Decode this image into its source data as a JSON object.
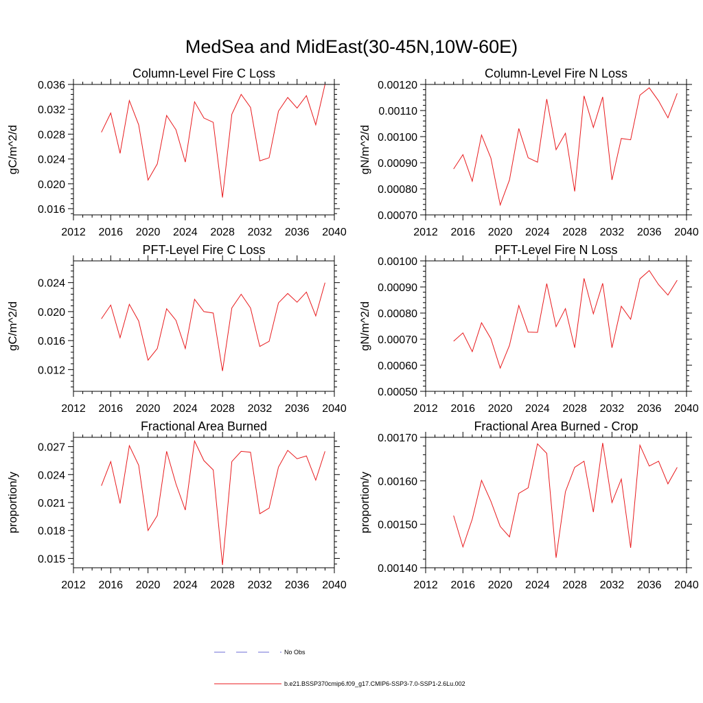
{
  "figure": {
    "title": "MedSea and MidEast(30-45N,10W-60E)"
  },
  "legend": {
    "entries": [
      {
        "label": "No Obs",
        "style": "dashed",
        "color": "#6b6bd6"
      },
      {
        "label": "b.e21.BSSP370cmip6.f09_g17.CMIP6-SSP3-7.0-SSP1-2.6Lu.002",
        "style": "solid",
        "color": "#e8191c"
      }
    ]
  },
  "chart_data": [
    {
      "type": "line",
      "title": "Column-Level Fire C Loss",
      "ylabel": "gC/m^2/d",
      "xlim": [
        2012,
        2040
      ],
      "xticks": [
        "2012",
        "2016",
        "2020",
        "2024",
        "2028",
        "2032",
        "2036",
        "2040"
      ],
      "ylim": [
        0.015,
        0.036
      ],
      "yticks": [
        "0.016",
        "0.020",
        "0.024",
        "0.028",
        "0.032",
        "0.036"
      ],
      "series": [
        {
          "color": "#e8191c",
          "x": [
            2015,
            2016,
            2017,
            2018,
            2019,
            2020,
            2021,
            2022,
            2023,
            2024,
            2025,
            2026,
            2027,
            2028,
            2029,
            2030,
            2031,
            2032,
            2033,
            2034,
            2035,
            2036,
            2037,
            2038,
            2039
          ],
          "y": [
            0.0283,
            0.0314,
            0.0249,
            0.0334,
            0.0295,
            0.0206,
            0.0232,
            0.031,
            0.0287,
            0.0235,
            0.0332,
            0.0306,
            0.0299,
            0.0178,
            0.0312,
            0.0344,
            0.0323,
            0.0237,
            0.0242,
            0.0317,
            0.0339,
            0.0322,
            0.0342,
            0.0295,
            0.036
          ]
        }
      ]
    },
    {
      "type": "line",
      "title": "Column-Level Fire N Loss",
      "ylabel": "gN/m^2/d",
      "xlim": [
        2012,
        2040
      ],
      "xticks": [
        "2012",
        "2016",
        "2020",
        "2024",
        "2028",
        "2032",
        "2036",
        "2040"
      ],
      "ylim": [
        0.0007,
        0.0012
      ],
      "yticks": [
        "0.00070",
        "0.00080",
        "0.00090",
        "0.00100",
        "0.00110",
        "0.00120"
      ],
      "series": [
        {
          "color": "#e8191c",
          "x": [
            2015,
            2016,
            2017,
            2018,
            2019,
            2020,
            2021,
            2022,
            2023,
            2024,
            2025,
            2026,
            2027,
            2028,
            2029,
            2030,
            2031,
            2032,
            2033,
            2034,
            2035,
            2036,
            2037,
            2038,
            2039
          ],
          "y": [
            0.000876,
            0.000931,
            0.000829,
            0.001006,
            0.000918,
            0.000738,
            0.000834,
            0.001031,
            0.000919,
            0.000902,
            0.001144,
            0.00095,
            0.001013,
            0.00079,
            0.001156,
            0.001035,
            0.001152,
            0.000834,
            0.000993,
            0.000988,
            0.001159,
            0.001187,
            0.001137,
            0.001072,
            0.001166
          ]
        }
      ]
    },
    {
      "type": "line",
      "title": "PFT-Level Fire C Loss",
      "ylabel": "gC/m^2/d",
      "xlim": [
        2012,
        2040
      ],
      "xticks": [
        "2012",
        "2016",
        "2020",
        "2024",
        "2028",
        "2032",
        "2036",
        "2040"
      ],
      "ylim": [
        0.009,
        0.027
      ],
      "yticks": [
        "0.012",
        "0.016",
        "0.020",
        "0.024"
      ],
      "series": [
        {
          "color": "#e8191c",
          "x": [
            2015,
            2016,
            2017,
            2018,
            2019,
            2020,
            2021,
            2022,
            2023,
            2024,
            2025,
            2026,
            2027,
            2028,
            2029,
            2030,
            2031,
            2032,
            2033,
            2034,
            2035,
            2036,
            2037,
            2038,
            2039
          ],
          "y": [
            0.019,
            0.0209,
            0.0164,
            0.021,
            0.0187,
            0.0133,
            0.0149,
            0.0204,
            0.0188,
            0.0149,
            0.0217,
            0.02,
            0.0198,
            0.0118,
            0.0205,
            0.0224,
            0.0205,
            0.0152,
            0.0159,
            0.0212,
            0.0225,
            0.0213,
            0.0227,
            0.0194,
            0.024
          ]
        }
      ]
    },
    {
      "type": "line",
      "title": "PFT-Level Fire N Loss",
      "ylabel": "gN/m^2/d",
      "xlim": [
        2012,
        2040
      ],
      "xticks": [
        "2012",
        "2016",
        "2020",
        "2024",
        "2028",
        "2032",
        "2036",
        "2040"
      ],
      "ylim": [
        0.0005,
        0.001
      ],
      "yticks": [
        "0.00050",
        "0.00060",
        "0.00070",
        "0.00080",
        "0.00090",
        "0.00100"
      ],
      "series": [
        {
          "color": "#e8191c",
          "x": [
            2015,
            2016,
            2017,
            2018,
            2019,
            2020,
            2021,
            2022,
            2023,
            2024,
            2025,
            2026,
            2027,
            2028,
            2029,
            2030,
            2031,
            2032,
            2033,
            2034,
            2035,
            2036,
            2037,
            2038,
            2039
          ],
          "y": [
            0.000692,
            0.000724,
            0.000652,
            0.000763,
            0.000702,
            0.000589,
            0.000676,
            0.000829,
            0.000727,
            0.000726,
            0.000913,
            0.000748,
            0.000817,
            0.000667,
            0.000933,
            0.000797,
            0.000914,
            0.000667,
            0.000826,
            0.000776,
            0.000931,
            0.000963,
            0.000909,
            0.000869,
            0.000926
          ]
        }
      ]
    },
    {
      "type": "line",
      "title": "Fractional Area Burned",
      "ylabel": "proportion/y",
      "xlim": [
        2012,
        2040
      ],
      "xticks": [
        "2012",
        "2016",
        "2020",
        "2024",
        "2028",
        "2032",
        "2036",
        "2040"
      ],
      "ylim": [
        0.014,
        0.028
      ],
      "yticks": [
        "0.015",
        "0.018",
        "0.021",
        "0.024",
        "0.027"
      ],
      "series": [
        {
          "color": "#e8191c",
          "x": [
            2015,
            2016,
            2017,
            2018,
            2019,
            2020,
            2021,
            2022,
            2023,
            2024,
            2025,
            2026,
            2027,
            2028,
            2029,
            2030,
            2031,
            2032,
            2033,
            2034,
            2035,
            2036,
            2037,
            2038,
            2039
          ],
          "y": [
            0.0228,
            0.0254,
            0.0209,
            0.0271,
            0.025,
            0.018,
            0.0196,
            0.0265,
            0.023,
            0.0202,
            0.0276,
            0.0255,
            0.0245,
            0.0143,
            0.0254,
            0.0265,
            0.0264,
            0.0198,
            0.0204,
            0.0248,
            0.0266,
            0.0257,
            0.026,
            0.0234,
            0.0265
          ]
        }
      ]
    },
    {
      "type": "line",
      "title": "Fractional Area Burned - Crop",
      "ylabel": "proportion/y",
      "xlim": [
        2012,
        2040
      ],
      "xticks": [
        "2012",
        "2016",
        "2020",
        "2024",
        "2028",
        "2032",
        "2036",
        "2040"
      ],
      "ylim": [
        0.0014,
        0.0017
      ],
      "yticks": [
        "0.00140",
        "0.00150",
        "0.00160",
        "0.00170"
      ],
      "series": [
        {
          "color": "#e8191c",
          "x": [
            2015,
            2016,
            2017,
            2018,
            2019,
            2020,
            2021,
            2022,
            2023,
            2024,
            2025,
            2026,
            2027,
            2028,
            2029,
            2030,
            2031,
            2032,
            2033,
            2034,
            2035,
            2036,
            2037,
            2038,
            2039
          ],
          "y": [
            0.00152,
            0.001448,
            0.001512,
            0.001601,
            0.001553,
            0.001495,
            0.001471,
            0.001571,
            0.001584,
            0.001685,
            0.001663,
            0.001423,
            0.001575,
            0.001631,
            0.001645,
            0.001528,
            0.001687,
            0.00155,
            0.001604,
            0.001446,
            0.001682,
            0.001634,
            0.001645,
            0.001593,
            0.001631
          ]
        }
      ]
    }
  ]
}
